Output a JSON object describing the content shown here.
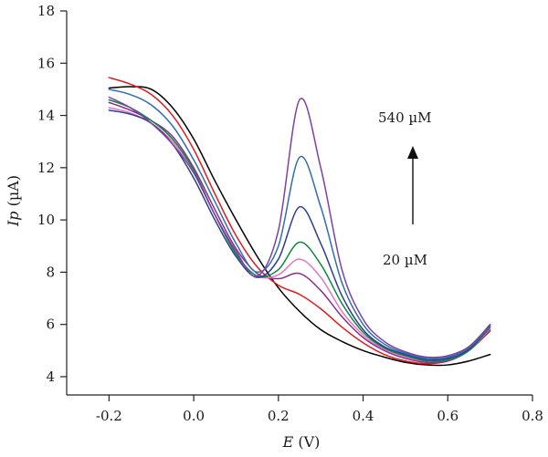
{
  "chart_data": {
    "type": "line",
    "title": "",
    "xlabel": {
      "italic": "E",
      "unit": " (V)"
    },
    "ylabel": {
      "italic": "Ip",
      "unit": " (µA)"
    },
    "xlim": [
      -0.3,
      0.8
    ],
    "ylim": [
      3.3,
      18
    ],
    "xticks": [
      -0.2,
      0.0,
      0.2,
      0.4,
      0.6,
      0.8
    ],
    "xtick_labels": [
      "-0.2",
      "0.0",
      "0.2",
      "0.4",
      "0.6",
      "0.8"
    ],
    "yticks": [
      4,
      6,
      8,
      10,
      12,
      14,
      16,
      18
    ],
    "ytick_labels": [
      "4",
      "6",
      "8",
      "10",
      "12",
      "14",
      "16",
      "18"
    ],
    "grid": false,
    "annotations": {
      "top_label": "540 µM",
      "bottom_label": "20 µM",
      "arrow": "up"
    },
    "series": [
      {
        "color": "#000000",
        "points": [
          [
            -0.2,
            15.05
          ],
          [
            -0.15,
            15.1
          ],
          [
            -0.1,
            15.0
          ],
          [
            -0.05,
            14.3
          ],
          [
            0.0,
            13.1
          ],
          [
            0.05,
            11.5
          ],
          [
            0.1,
            10.0
          ],
          [
            0.15,
            8.6
          ],
          [
            0.2,
            7.4
          ],
          [
            0.25,
            6.5
          ],
          [
            0.3,
            5.8
          ],
          [
            0.35,
            5.35
          ],
          [
            0.4,
            5.0
          ],
          [
            0.45,
            4.75
          ],
          [
            0.5,
            4.55
          ],
          [
            0.55,
            4.45
          ],
          [
            0.6,
            4.45
          ],
          [
            0.65,
            4.6
          ],
          [
            0.7,
            4.85
          ]
        ]
      },
      {
        "color": "#e41a1c",
        "points": [
          [
            -0.2,
            15.45
          ],
          [
            -0.15,
            15.2
          ],
          [
            -0.1,
            14.8
          ],
          [
            -0.05,
            14.0
          ],
          [
            0.0,
            12.7
          ],
          [
            0.05,
            11.0
          ],
          [
            0.1,
            9.4
          ],
          [
            0.15,
            8.2
          ],
          [
            0.2,
            7.5
          ],
          [
            0.25,
            7.15
          ],
          [
            0.3,
            6.6
          ],
          [
            0.35,
            5.9
          ],
          [
            0.4,
            5.3
          ],
          [
            0.45,
            4.85
          ],
          [
            0.5,
            4.6
          ],
          [
            0.55,
            4.5
          ],
          [
            0.6,
            4.6
          ],
          [
            0.65,
            5.0
          ],
          [
            0.7,
            5.75
          ]
        ]
      },
      {
        "color": "#8e2c8e",
        "points": [
          [
            -0.2,
            14.5
          ],
          [
            -0.15,
            14.2
          ],
          [
            -0.1,
            13.8
          ],
          [
            -0.05,
            13.2
          ],
          [
            0.0,
            12.0
          ],
          [
            0.05,
            10.4
          ],
          [
            0.1,
            8.9
          ],
          [
            0.15,
            7.95
          ],
          [
            0.2,
            7.75
          ],
          [
            0.25,
            7.95
          ],
          [
            0.3,
            7.3
          ],
          [
            0.35,
            6.3
          ],
          [
            0.4,
            5.5
          ],
          [
            0.45,
            5.0
          ],
          [
            0.5,
            4.7
          ],
          [
            0.55,
            4.55
          ],
          [
            0.6,
            4.6
          ],
          [
            0.65,
            5.0
          ],
          [
            0.7,
            5.8
          ]
        ]
      },
      {
        "color": "#e377c2",
        "points": [
          [
            -0.2,
            14.3
          ],
          [
            -0.15,
            14.1
          ],
          [
            -0.1,
            13.7
          ],
          [
            -0.05,
            13.0
          ],
          [
            0.0,
            11.8
          ],
          [
            0.05,
            10.2
          ],
          [
            0.1,
            8.7
          ],
          [
            0.15,
            7.85
          ],
          [
            0.2,
            7.9
          ],
          [
            0.25,
            8.5
          ],
          [
            0.3,
            7.8
          ],
          [
            0.35,
            6.5
          ],
          [
            0.4,
            5.6
          ],
          [
            0.45,
            5.05
          ],
          [
            0.5,
            4.75
          ],
          [
            0.55,
            4.6
          ],
          [
            0.6,
            4.65
          ],
          [
            0.65,
            5.0
          ],
          [
            0.7,
            5.85
          ]
        ]
      },
      {
        "color": "#0a8a3a",
        "points": [
          [
            -0.2,
            14.6
          ],
          [
            -0.15,
            14.3
          ],
          [
            -0.1,
            13.8
          ],
          [
            -0.05,
            13.1
          ],
          [
            0.0,
            11.9
          ],
          [
            0.05,
            10.2
          ],
          [
            0.1,
            8.7
          ],
          [
            0.15,
            7.85
          ],
          [
            0.2,
            8.1
          ],
          [
            0.25,
            9.15
          ],
          [
            0.3,
            8.3
          ],
          [
            0.35,
            6.8
          ],
          [
            0.4,
            5.7
          ],
          [
            0.45,
            5.1
          ],
          [
            0.5,
            4.8
          ],
          [
            0.55,
            4.6
          ],
          [
            0.6,
            4.65
          ],
          [
            0.65,
            5.0
          ],
          [
            0.7,
            5.9
          ]
        ]
      },
      {
        "color": "#2c3e91",
        "points": [
          [
            -0.2,
            14.2
          ],
          [
            -0.15,
            14.05
          ],
          [
            -0.1,
            13.7
          ],
          [
            -0.05,
            12.9
          ],
          [
            0.0,
            11.6
          ],
          [
            0.05,
            10.0
          ],
          [
            0.1,
            8.6
          ],
          [
            0.15,
            7.8
          ],
          [
            0.2,
            8.5
          ],
          [
            0.25,
            10.5
          ],
          [
            0.3,
            9.1
          ],
          [
            0.35,
            7.1
          ],
          [
            0.4,
            5.8
          ],
          [
            0.45,
            5.15
          ],
          [
            0.5,
            4.85
          ],
          [
            0.55,
            4.65
          ],
          [
            0.6,
            4.7
          ],
          [
            0.65,
            5.05
          ],
          [
            0.7,
            5.95
          ]
        ]
      },
      {
        "color": "#2f6db5",
        "points": [
          [
            -0.2,
            15.0
          ],
          [
            -0.15,
            14.8
          ],
          [
            -0.1,
            14.4
          ],
          [
            -0.05,
            13.6
          ],
          [
            0.0,
            12.3
          ],
          [
            0.05,
            10.7
          ],
          [
            0.1,
            9.1
          ],
          [
            0.15,
            8.0
          ],
          [
            0.2,
            9.0
          ],
          [
            0.25,
            12.4
          ],
          [
            0.3,
            10.5
          ],
          [
            0.35,
            7.6
          ],
          [
            0.4,
            6.0
          ],
          [
            0.45,
            5.25
          ],
          [
            0.5,
            4.9
          ],
          [
            0.55,
            4.7
          ],
          [
            0.6,
            4.75
          ],
          [
            0.65,
            5.1
          ],
          [
            0.7,
            5.95
          ]
        ]
      },
      {
        "color": "#7f3fa6",
        "points": [
          [
            -0.2,
            14.7
          ],
          [
            -0.15,
            14.3
          ],
          [
            -0.1,
            13.7
          ],
          [
            -0.05,
            12.9
          ],
          [
            0.0,
            11.8
          ],
          [
            0.05,
            10.2
          ],
          [
            0.1,
            8.8
          ],
          [
            0.15,
            7.85
          ],
          [
            0.2,
            9.6
          ],
          [
            0.25,
            14.6
          ],
          [
            0.3,
            12.0
          ],
          [
            0.35,
            8.1
          ],
          [
            0.4,
            6.2
          ],
          [
            0.45,
            5.35
          ],
          [
            0.5,
            4.95
          ],
          [
            0.55,
            4.75
          ],
          [
            0.6,
            4.8
          ],
          [
            0.65,
            5.15
          ],
          [
            0.7,
            6.0
          ]
        ]
      }
    ]
  }
}
